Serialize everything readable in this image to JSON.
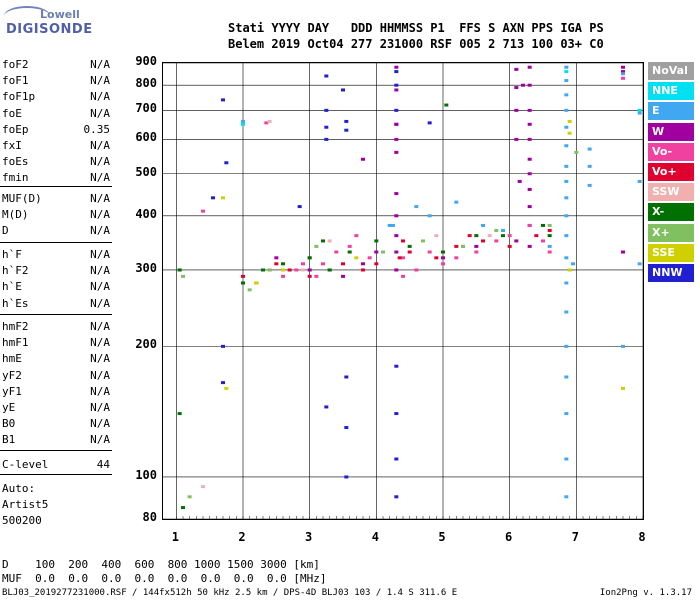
{
  "logo": {
    "top": "Lowell",
    "bottom": "DIGISONDE"
  },
  "header": {
    "line1": "Stati YYYY DAY   DDD HHMMSS P1  FFS S AXN PPS IGA PS",
    "line2": "Belem 2019 Oct04 277 231000 RSF 005 2 713 100 03+ C0"
  },
  "params_group1": [
    {
      "name": "foF2",
      "value": "N/A"
    },
    {
      "name": "foF1",
      "value": "N/A"
    },
    {
      "name": "foF1p",
      "value": "N/A"
    },
    {
      "name": "foE",
      "value": "N/A"
    },
    {
      "name": "foEp",
      "value": "0.35"
    },
    {
      "name": "fxI",
      "value": "N/A"
    },
    {
      "name": "foEs",
      "value": "N/A"
    },
    {
      "name": "fmin",
      "value": "N/A"
    }
  ],
  "params_group2": [
    {
      "name": "MUF(D)",
      "value": "N/A"
    },
    {
      "name": "M(D)",
      "value": "N/A"
    },
    {
      "name": "D",
      "value": "N/A"
    }
  ],
  "params_group3": [
    {
      "name": "h`F",
      "value": "N/A"
    },
    {
      "name": "h`F2",
      "value": "N/A"
    },
    {
      "name": "h`E",
      "value": "N/A"
    },
    {
      "name": "h`Es",
      "value": "N/A"
    }
  ],
  "params_group4": [
    {
      "name": "hmF2",
      "value": "N/A"
    },
    {
      "name": "hmF1",
      "value": "N/A"
    },
    {
      "name": "hmE",
      "value": "N/A"
    },
    {
      "name": "yF2",
      "value": "N/A"
    },
    {
      "name": "yF1",
      "value": "N/A"
    },
    {
      "name": "yE",
      "value": "N/A"
    },
    {
      "name": "B0",
      "value": "N/A"
    },
    {
      "name": "B1",
      "value": "N/A"
    }
  ],
  "clevel": {
    "name": "C-level",
    "value": "44"
  },
  "auto": {
    "line1": "Auto:",
    "line2": "Artist5",
    "line3": "500200"
  },
  "bottom_table": {
    "d_row": "D    100  200  400  600  800 1000 1500 3000 [km]",
    "muf_row": "MUF  0.0  0.0  0.0  0.0  0.0  0.0  0.0  0.0 [MHz]"
  },
  "footer": "BLJ03_2019277231000.RSF / 144fx512h 50 kHz 2.5 km / DPS-4D BLJ03 103 / 1.4 S 311.6 E",
  "version": "Ion2Png v. 1.3.17",
  "legend": [
    {
      "label": "NoVal",
      "color": "#a0a0a0"
    },
    {
      "label": "NNE",
      "color": "#00e0f0"
    },
    {
      "label": "E",
      "color": "#40a8f0"
    },
    {
      "label": "W",
      "color": "#a000a0"
    },
    {
      "label": "Vo-",
      "color": "#f040a0"
    },
    {
      "label": "Vo+",
      "color": "#e00030"
    },
    {
      "label": "SSW",
      "color": "#f0b0b0"
    },
    {
      "label": "X-",
      "color": "#007000"
    },
    {
      "label": "X+",
      "color": "#80c060"
    },
    {
      "label": "SSE",
      "color": "#d0d000"
    },
    {
      "label": "NNW",
      "color": "#2020d0"
    }
  ],
  "chart_data": {
    "type": "scatter",
    "title": "",
    "xlabel": "",
    "ylabel": "",
    "xlim": [
      0.8,
      8.0
    ],
    "ylim": [
      80,
      900
    ],
    "y_scale": "log",
    "xticks": [
      1,
      2,
      3,
      4,
      5,
      6,
      7,
      8
    ],
    "yticks": [
      80,
      100,
      200,
      300,
      400,
      500,
      600,
      700,
      800,
      900
    ],
    "series": [
      {
        "name": "NNW",
        "color": "#2020d0",
        "points": [
          [
            3.25,
            840
          ],
          [
            3.5,
            780
          ],
          [
            4.3,
            860
          ],
          [
            4.3,
            800
          ],
          [
            4.3,
            700
          ],
          [
            4.3,
            650
          ],
          [
            4.3,
            180
          ],
          [
            4.3,
            140
          ],
          [
            4.3,
            110
          ],
          [
            4.3,
            90
          ],
          [
            3.55,
            170
          ],
          [
            3.55,
            130
          ],
          [
            3.55,
            100
          ],
          [
            3.25,
            700
          ],
          [
            3.25,
            640
          ],
          [
            3.25,
            600
          ],
          [
            3.55,
            660
          ],
          [
            3.55,
            630
          ],
          [
            1.7,
            740
          ],
          [
            4.8,
            655
          ],
          [
            3.25,
            145
          ],
          [
            1.7,
            200
          ],
          [
            1.55,
            440
          ],
          [
            1.75,
            530
          ],
          [
            2.85,
            420
          ],
          [
            1.7,
            165
          ]
        ]
      },
      {
        "name": "W",
        "color": "#a000a0",
        "points": [
          [
            4.3,
            880
          ],
          [
            4.3,
            780
          ],
          [
            4.3,
            650
          ],
          [
            4.3,
            600
          ],
          [
            4.3,
            560
          ],
          [
            4.3,
            450
          ],
          [
            4.3,
            400
          ],
          [
            4.3,
            360
          ],
          [
            4.3,
            330
          ],
          [
            4.3,
            300
          ],
          [
            6.3,
            880
          ],
          [
            6.3,
            800
          ],
          [
            6.3,
            700
          ],
          [
            6.3,
            650
          ],
          [
            6.3,
            600
          ],
          [
            6.3,
            540
          ],
          [
            6.3,
            500
          ],
          [
            6.3,
            460
          ],
          [
            6.3,
            420
          ],
          [
            6.3,
            380
          ],
          [
            6.3,
            340
          ],
          [
            6.1,
            870
          ],
          [
            6.1,
            790
          ],
          [
            6.1,
            700
          ],
          [
            6.1,
            600
          ],
          [
            7.7,
            860
          ],
          [
            7.7,
            880
          ],
          [
            7.7,
            330
          ],
          [
            2.5,
            320
          ],
          [
            3.0,
            300
          ],
          [
            3.5,
            290
          ],
          [
            3.8,
            310
          ],
          [
            5.0,
            320
          ],
          [
            5.5,
            340
          ],
          [
            6.1,
            350
          ],
          [
            4.0,
            330
          ],
          [
            6.15,
            480
          ],
          [
            6.2,
            800
          ],
          [
            3.8,
            540
          ]
        ]
      },
      {
        "name": "E",
        "color": "#40a8f0",
        "points": [
          [
            6.85,
            880
          ],
          [
            6.85,
            820
          ],
          [
            6.85,
            760
          ],
          [
            6.85,
            700
          ],
          [
            6.85,
            640
          ],
          [
            6.85,
            580
          ],
          [
            6.85,
            520
          ],
          [
            6.85,
            480
          ],
          [
            6.85,
            440
          ],
          [
            6.85,
            400
          ],
          [
            6.85,
            360
          ],
          [
            6.85,
            320
          ],
          [
            6.85,
            280
          ],
          [
            6.85,
            240
          ],
          [
            6.85,
            200
          ],
          [
            6.85,
            170
          ],
          [
            6.85,
            140
          ],
          [
            6.85,
            110
          ],
          [
            6.85,
            90
          ],
          [
            7.2,
            570
          ],
          [
            7.2,
            520
          ],
          [
            7.2,
            470
          ],
          [
            7.95,
            690
          ],
          [
            7.95,
            480
          ],
          [
            7.95,
            310
          ],
          [
            7.7,
            200
          ],
          [
            6.95,
            310
          ],
          [
            6.6,
            340
          ],
          [
            5.3,
            340
          ],
          [
            5.6,
            380
          ],
          [
            4.8,
            400
          ],
          [
            4.2,
            380
          ],
          [
            5.2,
            430
          ],
          [
            4.6,
            420
          ],
          [
            2.0,
            660
          ],
          [
            7.7,
            850
          ],
          [
            1.05,
            300
          ],
          [
            4.25,
            380
          ],
          [
            5.9,
            370
          ]
        ]
      },
      {
        "name": "Vo-",
        "color": "#f040a0",
        "points": [
          [
            2.4,
            300
          ],
          [
            2.6,
            290
          ],
          [
            2.8,
            300
          ],
          [
            2.9,
            310
          ],
          [
            3.0,
            320
          ],
          [
            3.1,
            290
          ],
          [
            3.2,
            310
          ],
          [
            3.4,
            330
          ],
          [
            3.6,
            340
          ],
          [
            3.9,
            320
          ],
          [
            4.4,
            320
          ],
          [
            4.6,
            300
          ],
          [
            4.8,
            330
          ],
          [
            5.0,
            310
          ],
          [
            5.2,
            320
          ],
          [
            5.5,
            330
          ],
          [
            5.8,
            350
          ],
          [
            6.0,
            360
          ],
          [
            6.3,
            380
          ],
          [
            6.5,
            350
          ],
          [
            6.6,
            330
          ],
          [
            7.7,
            830
          ],
          [
            2.0,
            280
          ],
          [
            4.4,
            290
          ],
          [
            3.7,
            360
          ],
          [
            1.4,
            410
          ],
          [
            2.35,
            655
          ]
        ]
      },
      {
        "name": "Vo+",
        "color": "#e00030",
        "points": [
          [
            2.0,
            290
          ],
          [
            2.2,
            280
          ],
          [
            2.5,
            310
          ],
          [
            2.7,
            300
          ],
          [
            3.0,
            290
          ],
          [
            3.3,
            300
          ],
          [
            3.5,
            310
          ],
          [
            3.8,
            300
          ],
          [
            4.0,
            310
          ],
          [
            4.5,
            330
          ],
          [
            4.9,
            320
          ],
          [
            5.2,
            340
          ],
          [
            5.6,
            350
          ],
          [
            6.0,
            340
          ],
          [
            6.4,
            360
          ],
          [
            6.6,
            370
          ],
          [
            4.35,
            320
          ],
          [
            4.4,
            350
          ],
          [
            5.4,
            360
          ]
        ]
      },
      {
        "name": "X-",
        "color": "#007000",
        "points": [
          [
            1.05,
            140
          ],
          [
            1.1,
            85
          ],
          [
            1.05,
            300
          ],
          [
            2.0,
            280
          ],
          [
            2.3,
            300
          ],
          [
            2.6,
            310
          ],
          [
            3.0,
            320
          ],
          [
            3.3,
            300
          ],
          [
            3.6,
            330
          ],
          [
            4.0,
            350
          ],
          [
            4.5,
            340
          ],
          [
            5.0,
            330
          ],
          [
            5.5,
            360
          ],
          [
            5.9,
            360
          ],
          [
            6.5,
            380
          ],
          [
            6.6,
            360
          ],
          [
            5.05,
            720
          ],
          [
            3.2,
            350
          ]
        ]
      },
      {
        "name": "X+",
        "color": "#80c060",
        "points": [
          [
            1.1,
            290
          ],
          [
            2.1,
            270
          ],
          [
            2.4,
            300
          ],
          [
            3.1,
            340
          ],
          [
            4.1,
            330
          ],
          [
            4.7,
            350
          ],
          [
            5.3,
            340
          ],
          [
            5.8,
            370
          ],
          [
            6.6,
            380
          ],
          [
            6.9,
            300
          ],
          [
            7.0,
            560
          ],
          [
            1.2,
            90
          ]
        ]
      },
      {
        "name": "SSE",
        "color": "#d0d000",
        "points": [
          [
            1.7,
            440
          ],
          [
            1.75,
            160
          ],
          [
            2.2,
            280
          ],
          [
            6.9,
            660
          ],
          [
            6.9,
            620
          ],
          [
            6.9,
            300
          ],
          [
            7.7,
            160
          ],
          [
            2.6,
            300
          ],
          [
            3.7,
            320
          ]
        ]
      },
      {
        "name": "SSW",
        "color": "#f0b0b0",
        "points": [
          [
            1.4,
            95
          ],
          [
            2.4,
            660
          ],
          [
            4.9,
            360
          ],
          [
            5.7,
            360
          ],
          [
            3.3,
            350
          ],
          [
            2.9,
            300
          ]
        ]
      },
      {
        "name": "NNE",
        "color": "#00e0f0",
        "points": [
          [
            2.0,
            650
          ],
          [
            6.85,
            860
          ],
          [
            7.95,
            700
          ]
        ]
      }
    ]
  }
}
